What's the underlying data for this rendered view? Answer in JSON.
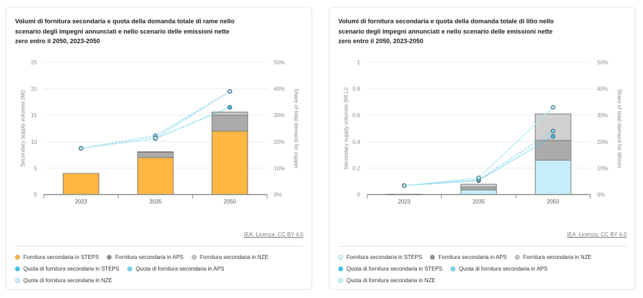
{
  "chart_data": [
    {
      "type": "bar",
      "title": "Volumi di fornitura secondaria e quota della domanda totale di rame nello scenario degli impegni annunciati e nello scenario delle emissioni nette zero entro il 2050, 2023-2050",
      "categories": [
        "2023",
        "2035",
        "2050"
      ],
      "ylabel": "Secondary supply volumes (Mt)",
      "ylabel_right": "Share of total demand for copper",
      "ylim": [
        0,
        25
      ],
      "yticks": [
        "0",
        "5",
        "10",
        "15",
        "20",
        "25"
      ],
      "ylim_right": [
        0,
        50
      ],
      "yticks_right": [
        "0%",
        "10%",
        "20%",
        "30%",
        "40%",
        "50%"
      ],
      "grid": true,
      "stacked_series": [
        {
          "name": "Fornitura secondaria in STEPS",
          "values": [
            4.0,
            7.0,
            12.0
          ],
          "color": "#ffb642"
        },
        {
          "name": "Fornitura secondaria in APS",
          "values": [
            0,
            1.0,
            3.0
          ],
          "color": "#ababab"
        },
        {
          "name": "Fornitura secondaria in NZE",
          "values": [
            0,
            0.1,
            0.6
          ],
          "color": "#c8c8c8"
        }
      ],
      "line_series": [
        {
          "name": "Quota di fornitura secondaria in STEPS",
          "values": [
            17.5,
            21.2,
            33.0
          ],
          "color": "#3cc0e6",
          "dash": "dotted"
        },
        {
          "name": "Quota di fornitura secondaria in APS",
          "values": [
            17.5,
            22.2,
            39.0
          ],
          "color": "#7fd3ef",
          "dash": "dashed"
        },
        {
          "name": "Quota di fornitura secondaria in NZE",
          "values": [
            17.5,
            21.3,
            39.0
          ],
          "color": "#b9e8f7",
          "dash": "solid"
        }
      ],
      "source": "IEA. Licenza: CC BY 4.0",
      "legend": [
        {
          "label": "Fornitura secondaria in STEPS",
          "color": "#ffb642",
          "border": "#e0a040"
        },
        {
          "label": "Fornitura secondaria in APS",
          "color": "#8d8d8d",
          "border": "#8d8d8d"
        },
        {
          "label": "Fornitura secondaria in NZE",
          "color": "#c8c8c8",
          "border": "#a0a0a0"
        },
        {
          "label": "Quota di fornitura secondaria in STEPS",
          "color": "#3cc0e6",
          "border": "#3cc0e6"
        },
        {
          "label": "Quota di fornitura secondaria in APS",
          "color": "#7fd3ef",
          "border": "#5bbfe0"
        },
        {
          "label": "Quota di fornitura secondaria in NZE",
          "color": "#d6f1fa",
          "border": "#8fcfe6"
        }
      ]
    },
    {
      "type": "bar",
      "title": "Volumi di fornitura secondaria e quota della domanda totale di litio nello scenario degli impegni annunciati e nello scenario delle emissioni nette zero entro il 2050, 2023-2050",
      "categories": [
        "2023",
        "2035",
        "2050"
      ],
      "ylabel": "Secondary supply volumes (Mt Li)",
      "ylabel_right": "Share of total demand for lithium",
      "ylim": [
        0,
        1
      ],
      "yticks": [
        "0",
        "0.2",
        "0.4",
        "0.6",
        "0.8",
        "1"
      ],
      "ylim_right": [
        0,
        50
      ],
      "yticks_right": [
        "0%",
        "10%",
        "20%",
        "30%",
        "40%",
        "50%"
      ],
      "grid": true,
      "stacked_series": [
        {
          "name": "Fornitura secondaria in STEPS",
          "values": [
            0.003,
            0.035,
            0.26
          ],
          "color": "#c5eefa"
        },
        {
          "name": "Fornitura secondaria in APS",
          "values": [
            0,
            0.022,
            0.15
          ],
          "color": "#ababab"
        },
        {
          "name": "Fornitura secondaria in NZE",
          "values": [
            0,
            0.021,
            0.2
          ],
          "color": "#d0d0d0"
        }
      ],
      "line_series": [
        {
          "name": "Quota di fornitura secondaria in STEPS",
          "values": [
            3.4,
            5.3,
            22.0
          ],
          "color": "#3cc0e6",
          "dash": "dotted"
        },
        {
          "name": "Quota di fornitura secondaria in APS",
          "values": [
            3.4,
            5.6,
            24.0
          ],
          "color": "#7fd3ef",
          "dash": "dashed"
        },
        {
          "name": "Quota di fornitura secondaria in NZE",
          "values": [
            3.4,
            6.3,
            33.0
          ],
          "color": "#b9e8f7",
          "dash": "solid"
        }
      ],
      "source": "IEA. Licenza: CC BY 4.0",
      "legend": [
        {
          "label": "Fornitura secondaria in STEPS",
          "color": "#e4f6fc",
          "border": "#9ccfe0"
        },
        {
          "label": "Fornitura secondaria in APS",
          "color": "#8d8d8d",
          "border": "#8d8d8d"
        },
        {
          "label": "Fornitura secondaria in NZE",
          "color": "#c8c8c8",
          "border": "#a0a0a0"
        },
        {
          "label": "Quota di fornitura secondaria in STEPS",
          "color": "#3cc0e6",
          "border": "#3cc0e6"
        },
        {
          "label": "Quota di fornitura secondaria in APS",
          "color": "#7fd3ef",
          "border": "#5bbfe0"
        },
        {
          "label": "Quota di fornitura secondaria in NZE",
          "color": "#d6f1fa",
          "border": "#8fcfe6"
        }
      ]
    }
  ]
}
